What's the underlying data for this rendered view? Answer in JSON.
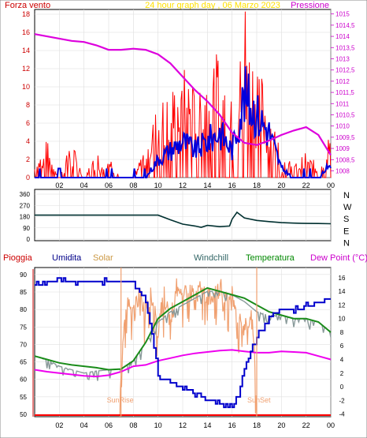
{
  "header": {
    "left_label": "Forza vento",
    "title": "24 hour graph day , 06 Marzo 2023",
    "right_label": "Pressione"
  },
  "colors": {
    "wind": "#ff0000",
    "gust": "#0000dd",
    "pressure": "#dd00dd",
    "direction": "#003030",
    "humidity": "#0000cc",
    "solar": "#f0a070",
    "windchill": "#889999",
    "temperature": "#1a8c1a",
    "dewpoint": "#ee00ee",
    "rain": "#ff0000",
    "title": "#ffff00"
  },
  "chart_data": [
    {
      "type": "line",
      "title": "24 hour graph day , 06 Marzo 2023",
      "x_ticks": [
        "02",
        "04",
        "06",
        "08",
        "10",
        "12",
        "14",
        "16",
        "18",
        "20",
        "22",
        "00"
      ],
      "xlim": [
        0,
        24
      ],
      "y_left": {
        "label": "Forza vento",
        "ticks": [
          "0",
          "2",
          "4",
          "6",
          "8",
          "10",
          "12",
          "14",
          "16",
          "18"
        ],
        "ylim": [
          0,
          18
        ]
      },
      "y_right": {
        "label": "Pressione",
        "ticks": [
          "1008",
          "1008,5",
          "1009",
          "1009,5",
          "1010",
          "1010,5",
          "1011",
          "1011,5",
          "1012",
          "1012,5",
          "1013",
          "1013,5",
          "1014",
          "1014,5",
          "1015"
        ],
        "ylim": [
          1007.7,
          1015.2
        ]
      },
      "series": [
        {
          "name": "Pressione",
          "axis": "right",
          "x": [
            0,
            1,
            2,
            3,
            4,
            5,
            6,
            7,
            8,
            9,
            10,
            11,
            12,
            13,
            14,
            15,
            16,
            17,
            18,
            19,
            20,
            21,
            22,
            23,
            24
          ],
          "y": [
            1014.1,
            1014.0,
            1013.9,
            1013.8,
            1013.75,
            1013.6,
            1013.4,
            1013.4,
            1013.45,
            1013.4,
            1013.2,
            1012.8,
            1012.2,
            1011.6,
            1011.1,
            1010.5,
            1009.7,
            1009.25,
            1009.15,
            1009.35,
            1009.6,
            1009.8,
            1009.95,
            1009.6,
            1008.7
          ]
        },
        {
          "axis": "left",
          "x": [
            0,
            1,
            2,
            3,
            4,
            5,
            6,
            7,
            8,
            9,
            10,
            11,
            12,
            13,
            14,
            15,
            16,
            17,
            18,
            19,
            20,
            21,
            22,
            23,
            24
          ],
          "y": [
            0,
            0,
            0,
            0,
            0,
            0,
            0,
            0,
            0,
            0,
            2,
            3,
            4,
            3,
            4,
            5,
            3,
            9,
            7,
            5,
            1,
            0,
            0,
            0,
            1.5
          ]
        },
        {
          "axis": "left",
          "x": [
            0,
            1,
            2,
            3,
            4,
            5,
            6,
            7,
            8,
            9,
            10,
            11,
            12,
            13,
            14,
            15,
            16,
            17,
            18,
            19,
            20,
            21,
            22,
            23,
            24
          ],
          "y": [
            1,
            3,
            0,
            3,
            0,
            2,
            2,
            0,
            0,
            3,
            6,
            7,
            9,
            7,
            9,
            10,
            6,
            12,
            10,
            6,
            2,
            1,
            2,
            1,
            4
          ]
        }
      ]
    },
    {
      "type": "line",
      "y_ticks": [
        "360",
        "270",
        "180",
        "90",
        "0"
      ],
      "ylim": [
        0,
        360
      ],
      "y_right_labels": [
        "N",
        "W",
        "S",
        "E",
        "N"
      ],
      "series": [
        {
          "axis": "left",
          "x": [
            0,
            9,
            10,
            11,
            12,
            13,
            13.5,
            14,
            15,
            15.8,
            16,
            16.4,
            17,
            18,
            19,
            20,
            21,
            22,
            23,
            24
          ],
          "y": [
            192,
            192,
            192,
            155,
            120,
            105,
            95,
            110,
            100,
            105,
            160,
            215,
            170,
            150,
            140,
            132,
            128,
            126,
            125,
            123
          ]
        }
      ]
    },
    {
      "type": "line",
      "legend": [
        "Pioggia",
        "Umidita",
        "Solar",
        "Windchill",
        "Temperatura",
        "Dew Point (°C)"
      ],
      "y_left_ticks": [
        "50",
        "55",
        "60",
        "65",
        "70",
        "75",
        "80",
        "85",
        "90"
      ],
      "y_left_lim": [
        50,
        92
      ],
      "y_right_ticks": [
        "-4",
        "-2",
        "0",
        "2",
        "4",
        "6",
        "8",
        "10",
        "12",
        "14",
        "16"
      ],
      "y_right_lim": [
        -4.4,
        17.5
      ],
      "annotations": [
        {
          "text": "SunRise",
          "x": 7.0
        },
        {
          "text": "SunSet",
          "x": 18.0
        }
      ],
      "series": [
        {
          "name": "Umidita",
          "axis": "left",
          "x": [
            0,
            1,
            2,
            3,
            4,
            5,
            6,
            7,
            8,
            9,
            9.5,
            10,
            11,
            12,
            13,
            14,
            15,
            16,
            16.5,
            17,
            18,
            19,
            20,
            21,
            22,
            23,
            24
          ],
          "y": [
            87,
            88,
            89,
            88,
            88,
            88,
            88,
            88,
            88,
            82,
            73,
            61,
            59,
            58,
            56,
            54,
            53,
            52,
            56,
            64,
            72,
            78,
            80,
            80,
            81,
            82,
            83
          ]
        },
        {
          "name": "Temperatura",
          "axis": "right",
          "x": [
            0,
            1,
            2,
            3,
            4,
            5,
            6,
            7,
            8,
            9,
            10,
            11,
            12,
            13,
            14,
            15,
            16,
            17,
            18,
            19,
            20,
            21,
            22,
            23,
            24
          ],
          "y": [
            4.5,
            4,
            3.5,
            3.2,
            3.0,
            2.8,
            2.5,
            2.6,
            3.8,
            6.5,
            10,
            11.5,
            12.5,
            13.5,
            14.5,
            14.0,
            13.5,
            13,
            12,
            11,
            10.5,
            10,
            10,
            9.5,
            8
          ]
        },
        {
          "name": "Dew Point (°C)",
          "axis": "right",
          "x": [
            0,
            1,
            2,
            3,
            4,
            5,
            6,
            7,
            8,
            9,
            10,
            11,
            12,
            13,
            14,
            15,
            16,
            17,
            18,
            19,
            20,
            21,
            22,
            23,
            24
          ],
          "y": [
            2.5,
            2.2,
            2,
            1.8,
            1.6,
            1.5,
            1.7,
            2.2,
            3.0,
            3.2,
            3.8,
            4.2,
            4.6,
            4.9,
            5.1,
            5.3,
            5.4,
            5.2,
            5.0,
            5.0,
            5.2,
            5.1,
            5.0,
            4.5,
            4.0
          ]
        },
        {
          "name": "Windchill",
          "axis": "right",
          "x": [
            0,
            1,
            2,
            3,
            4,
            5,
            6,
            7,
            8,
            9,
            10,
            11,
            12,
            13,
            14,
            15,
            16,
            17,
            18,
            19,
            20,
            21,
            22,
            23,
            24
          ],
          "y": [
            4.5,
            4,
            3.0,
            2.5,
            2.0,
            2.3,
            2.5,
            2.6,
            3.8,
            6.5,
            9.5,
            11,
            12,
            13,
            14,
            14.0,
            13.5,
            12.5,
            11,
            10.5,
            10.5,
            10,
            10,
            9.5,
            8
          ]
        },
        {
          "name": "Solar",
          "axis": "right",
          "x": [
            6.9,
            7,
            7.2,
            7.6,
            8,
            8.5,
            9,
            9.5,
            10,
            10.5,
            11,
            11.5,
            12,
            12.5,
            13,
            13.5,
            14,
            14.5,
            15,
            15.5,
            16,
            16.5,
            17,
            17.5,
            17.8,
            18
          ],
          "y": [
            -4.4,
            4,
            9,
            14,
            12,
            15,
            13,
            15,
            10,
            15,
            11,
            16,
            15,
            16,
            14,
            16,
            15,
            15,
            16,
            15,
            16,
            12,
            10,
            12,
            8,
            -4.4
          ]
        },
        {
          "name": "Pioggia",
          "axis": "left",
          "x": [
            0,
            24
          ],
          "y": [
            50,
            50
          ]
        }
      ]
    }
  ]
}
